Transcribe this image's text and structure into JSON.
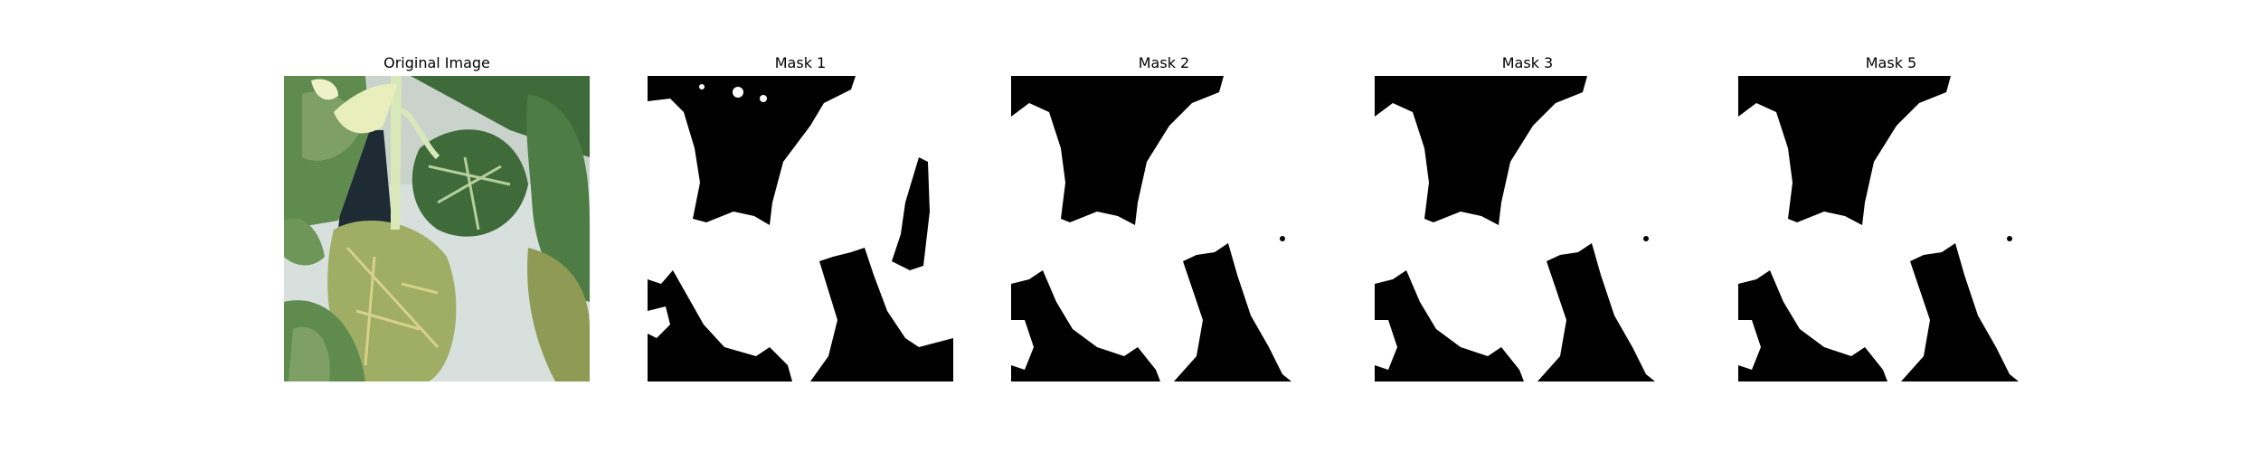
{
  "figure": {
    "panels": [
      {
        "title": "Original Image",
        "kind": "photo"
      },
      {
        "title": "Mask 1",
        "kind": "mask"
      },
      {
        "title": "Mask 2",
        "kind": "mask"
      },
      {
        "title": "Mask 3",
        "kind": "mask"
      },
      {
        "title": "Mask 5",
        "kind": "mask"
      }
    ]
  },
  "colors": {
    "mask_foreground": "#ffffff",
    "mask_background": "#000000",
    "leaf_dark": "#3f6b3a",
    "leaf_mid": "#5f8b4f",
    "leaf_light": "#9fbf74",
    "leaf_yellow": "#c8c47a",
    "stem": "#d9e8b8",
    "backdrop": "#d8e0de",
    "shadow": "#1e2a34"
  }
}
